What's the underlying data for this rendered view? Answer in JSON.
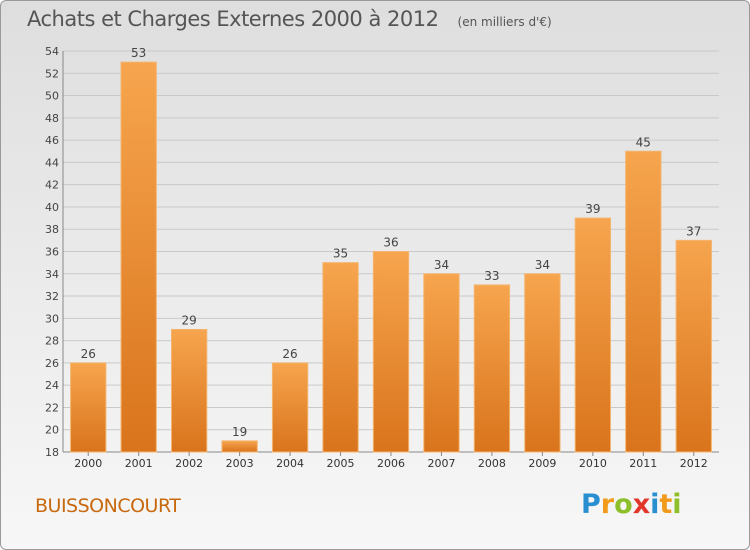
{
  "chart_data": {
    "type": "bar",
    "title": "Achats et Charges Externes 2000 à 2012",
    "subtitle": "(en milliers d'€)",
    "xlabel": "",
    "ylabel": "",
    "categories": [
      "2000",
      "2001",
      "2002",
      "2003",
      "2004",
      "2005",
      "2006",
      "2007",
      "2008",
      "2009",
      "2010",
      "2011",
      "2012"
    ],
    "values": [
      26,
      53,
      29,
      19,
      26,
      35,
      36,
      34,
      33,
      34,
      39,
      45,
      37
    ],
    "ylim": [
      18,
      54
    ],
    "yticks": [
      18,
      20,
      22,
      24,
      26,
      28,
      30,
      32,
      34,
      36,
      38,
      40,
      42,
      44,
      46,
      48,
      50,
      52,
      54
    ],
    "grid": true,
    "legend": "none",
    "colors": {
      "bar_top": "#f6a54e",
      "bar_bottom": "#d9741c",
      "bar_edge": "#f4b56f",
      "label": "#444444",
      "grid": "#c9c9c9"
    }
  },
  "commune": "BUISSONCOURT",
  "logo": {
    "letters": [
      "P",
      "r",
      "o",
      "x",
      "i",
      "t",
      "i"
    ],
    "colors": [
      "#2a8fd0",
      "#f29a1a",
      "#8cbf2a",
      "#e2362b",
      "#2a8fd0",
      "#f29a1a",
      "#8cbf2a"
    ]
  }
}
